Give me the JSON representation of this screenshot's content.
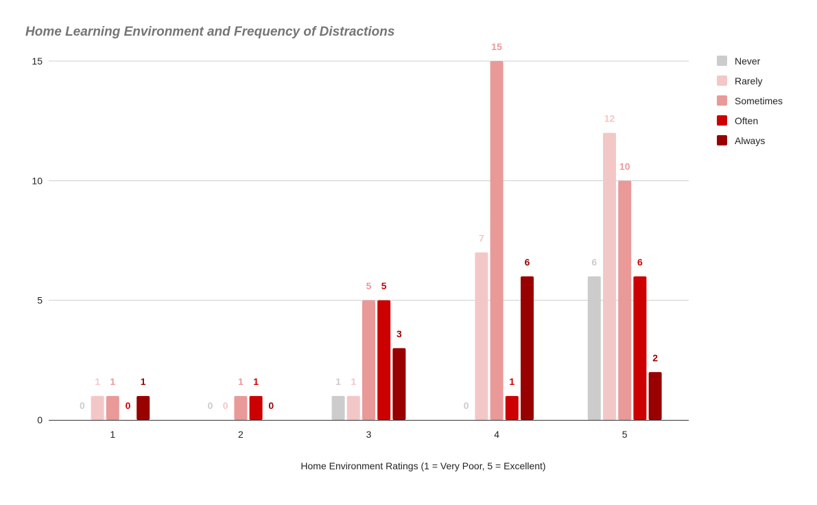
{
  "chart_data": {
    "type": "bar",
    "title": "Home Learning Environment and Frequency of Distractions",
    "xlabel": "Home Environment Ratings (1 = Very Poor, 5 = Excellent)",
    "ylabel": "",
    "categories": [
      "1",
      "2",
      "3",
      "4",
      "5"
    ],
    "ylim": [
      0,
      15
    ],
    "yticks": [
      "0",
      "5",
      "10",
      "15"
    ],
    "grid": true,
    "legend_position": "right",
    "series": [
      {
        "name": "Never",
        "color": "#cccccc",
        "label_color": "#cccccc",
        "values": [
          0,
          0,
          1,
          0,
          6
        ],
        "labels": [
          "0",
          "0",
          "1",
          "0",
          "6"
        ]
      },
      {
        "name": "Rarely",
        "color": "#f4c7c7",
        "label_color": "#f4c7c7",
        "values": [
          1,
          0,
          1,
          7,
          12
        ],
        "labels": [
          "1",
          "0",
          "1",
          "7",
          "12"
        ]
      },
      {
        "name": "Sometimes",
        "color": "#ea9999",
        "label_color": "#ea9999",
        "values": [
          1,
          1,
          5,
          15,
          10
        ],
        "labels": [
          "1",
          "1",
          "5",
          "15",
          "10"
        ]
      },
      {
        "name": "Often",
        "color": "#cc0000",
        "label_color": "#cc0000",
        "values": [
          0,
          1,
          5,
          1,
          6
        ],
        "labels": [
          "0",
          "1",
          "5",
          "1",
          "6"
        ]
      },
      {
        "name": "Always",
        "color": "#990000",
        "label_color": "#990000",
        "values": [
          1,
          0,
          3,
          6,
          2
        ],
        "labels": [
          "1",
          "0",
          "3",
          "6",
          "2"
        ]
      }
    ]
  }
}
